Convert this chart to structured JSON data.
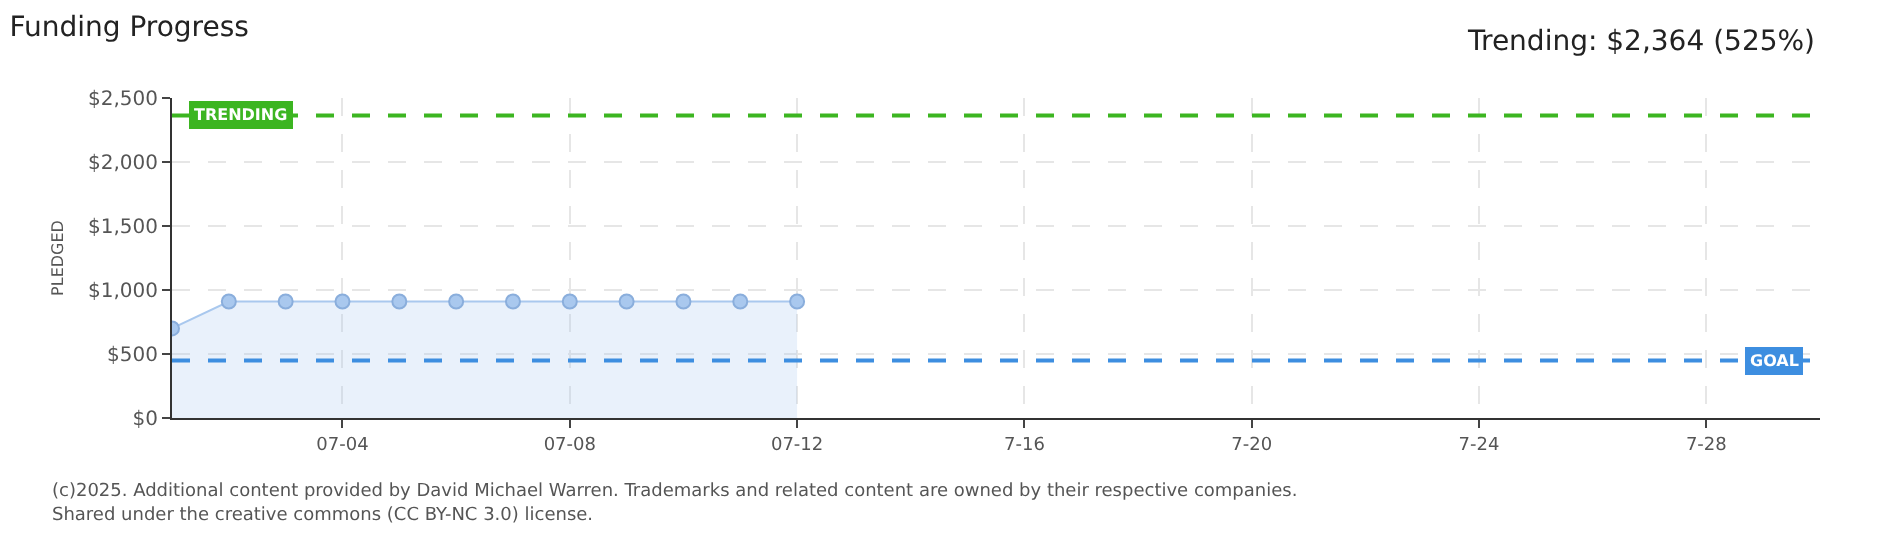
{
  "chart_data": {
    "type": "area",
    "title": "Funding Progress",
    "subtitle": "Trending: $2,364 (525%)",
    "ylabel": "PLEDGED",
    "x": [
      "--07-01",
      "--07-02",
      "--07-03",
      "--07-04",
      "--07-05",
      "--07-06",
      "--07-07",
      "--07-08",
      "--07-09",
      "--07-10",
      "--07-11",
      "--07-12"
    ],
    "series": [
      {
        "color": "#a9c8ee",
        "values": [
          700,
          910,
          910,
          910,
          910,
          910,
          910,
          910,
          910,
          910,
          910,
          910
        ]
      }
    ],
    "xlim": [
      "--07-01",
      "--07-30"
    ],
    "xticks": [
      {
        "value": "--07-04",
        "label": "07-04"
      },
      {
        "value": "--07-08",
        "label": "07-08"
      },
      {
        "value": "--07-12",
        "label": "07-12"
      },
      {
        "value": "--07-16",
        "label": "7-16"
      },
      {
        "value": "--07-20",
        "label": "7-20"
      },
      {
        "value": "--07-24",
        "label": "7-24"
      },
      {
        "value": "--07-28",
        "label": "7-28"
      }
    ],
    "ylim": [
      0,
      2500
    ],
    "yticks": [
      {
        "value": 0,
        "label": "$0"
      },
      {
        "value": 500,
        "label": "$500"
      },
      {
        "value": 1000,
        "label": "$1,000"
      },
      {
        "value": 1500,
        "label": "$1,500"
      },
      {
        "value": 2000,
        "label": "$2,000"
      },
      {
        "value": 2500,
        "label": "$2,500"
      }
    ],
    "ref_lines": [
      {
        "axis": "y",
        "value": 2364,
        "label": "TRENDING",
        "color": "#3cb521",
        "line_style": "dashed"
      },
      {
        "axis": "y",
        "value": 450,
        "label": "GOAL",
        "color": "#3d8ee0",
        "line_style": "dashed"
      }
    ],
    "grid": true,
    "marker": "circle",
    "annotations": [
      "(c)2025. Additional content provided by David Michael Warren. Trademarks and related content are owned by their respective companies.",
      "Shared under the creative commons (CC BY-NC 3.0) license."
    ]
  }
}
